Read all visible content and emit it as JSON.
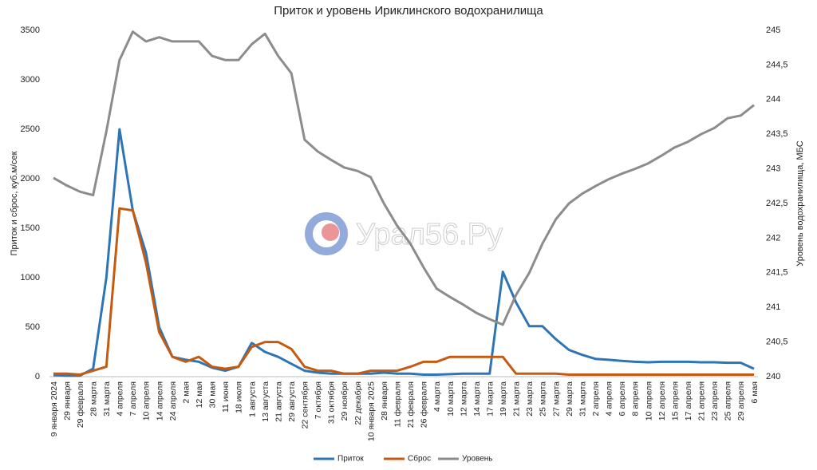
{
  "chart_data": {
    "type": "line",
    "title": "Приток и уровень Ириклинского водохранилища",
    "ylabel": "Приток и сброс, куб.м/сек",
    "y2label": "Уровень водохранилища, МБС",
    "watermark": "Урал56.Ру",
    "categories": [
      "9 января 2024",
      "29 января",
      "29 февраля",
      "28 марта",
      "31 марта",
      "4 апреля",
      "7 апреля",
      "10 апреля",
      "14 апреля",
      "24 апреля",
      "2 мая",
      "12 мая",
      "30 мая",
      "11 июня",
      "18 июля",
      "1 августа",
      "13 августа",
      "21 августа",
      "29 августа",
      "22 сентября",
      "7 октября",
      "31 октября",
      "29 ноября",
      "22 декабря",
      "10 января 2025",
      "28 января",
      "11 февраля",
      "21 февраля",
      "26 февраля",
      "4 марта",
      "10 марта",
      "12 марта",
      "14 марта",
      "17 марта",
      "19 марта",
      "21 марта",
      "23 марта",
      "25 марта",
      "27 марта",
      "29 марта",
      "31 марта",
      "2 апреля",
      "4 апреля",
      "6 апреля",
      "8 апреля",
      "10 апреля",
      "12 апреля",
      "15 апреля",
      "17 апреля",
      "21 апреля",
      "23 апреля",
      "25 апреля",
      "29 апреля",
      "6 мая"
    ],
    "ylim": [
      0,
      3500
    ],
    "yticks": [
      0,
      500,
      1000,
      1500,
      2000,
      2500,
      3000,
      3500
    ],
    "y2lim": [
      240,
      245
    ],
    "y2ticks": [
      240,
      {
        "value": 240.5,
        "label": "240,5"
      },
      241,
      {
        "value": 241.5,
        "label": "241,5"
      },
      242,
      {
        "value": 242.5,
        "label": "242,5"
      },
      243,
      {
        "value": 243.5,
        "label": "243,5"
      },
      244,
      {
        "value": 244.5,
        "label": "244,5"
      },
      245
    ],
    "grid": false,
    "legend": "bottom",
    "series": [
      {
        "name": "Приток",
        "color": "#2e75b6",
        "values": [
          15,
          10,
          10,
          80,
          1000,
          2500,
          1680,
          1250,
          500,
          200,
          170,
          150,
          90,
          60,
          100,
          340,
          250,
          200,
          130,
          60,
          40,
          30,
          30,
          30,
          30,
          40,
          30,
          30,
          20,
          20,
          25,
          30,
          30,
          30,
          1060,
          750,
          510,
          510,
          380,
          270,
          220,
          180,
          170,
          160,
          150,
          145,
          150,
          150,
          150,
          145,
          145,
          140,
          140,
          80
        ]
      },
      {
        "name": "Сброс",
        "color": "#c55a11",
        "values": [
          30,
          30,
          20,
          60,
          100,
          1700,
          1680,
          1150,
          450,
          200,
          150,
          200,
          100,
          80,
          100,
          300,
          350,
          350,
          280,
          100,
          60,
          60,
          30,
          30,
          60,
          60,
          60,
          100,
          150,
          150,
          200,
          200,
          200,
          200,
          200,
          30,
          30,
          30,
          30,
          20,
          20,
          20,
          20,
          20,
          20,
          20,
          20,
          20,
          20,
          20,
          20,
          20,
          20,
          20
        ]
      },
      {
        "name": "Уровень",
        "color": "#8c8c8c",
        "axis": "y2",
        "values": [
          242.87,
          242.76,
          242.67,
          242.62,
          243.54,
          244.57,
          244.98,
          244.84,
          244.9,
          244.84,
          244.84,
          244.84,
          244.63,
          244.57,
          244.57,
          244.8,
          244.95,
          244.63,
          244.38,
          243.42,
          243.25,
          243.13,
          243.02,
          242.97,
          242.88,
          242.5,
          242.18,
          241.92,
          241.58,
          241.27,
          241.15,
          241.04,
          240.92,
          240.83,
          240.75,
          241.18,
          241.5,
          241.92,
          242.27,
          242.5,
          242.64,
          242.75,
          242.85,
          242.93,
          243.0,
          243.08,
          243.19,
          243.31,
          243.39,
          243.5,
          243.59,
          243.73,
          243.77,
          243.92
        ]
      }
    ]
  }
}
